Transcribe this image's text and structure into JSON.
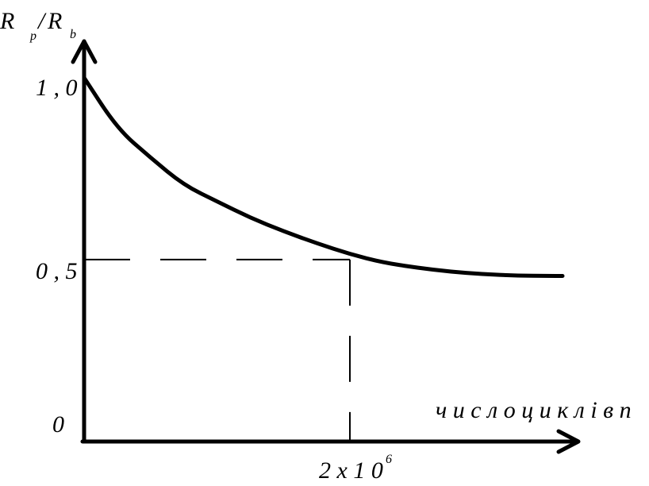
{
  "chart_data": {
    "type": "line",
    "ylabel": {
      "r1": "R",
      "sub1": "p",
      "slash": "/",
      "r2": "R",
      "sub2": "b"
    },
    "xlabel": "ч и с л о   ц и к л і в   n",
    "ytick_labels": [
      "1 , 0",
      "0 , 5",
      "0"
    ],
    "x_marker": {
      "base": "2 x 1 0",
      "exponent": "6"
    },
    "series": [
      {
        "x": [
          0,
          0.25,
          0.5,
          0.75,
          1,
          1.25,
          1.5,
          1.75,
          2,
          2.25,
          2.5,
          2.75,
          3,
          3.25,
          3.5,
          3.6
        ],
        "values": [
          1.0,
          0.86,
          0.78,
          0.705,
          0.66,
          0.615,
          0.578,
          0.545,
          0.515,
          0.492,
          0.478,
          0.467,
          0.46,
          0.456,
          0.455,
          0.455
        ]
      }
    ],
    "reference": {
      "x": 2,
      "y": 0.5
    },
    "xlim": [
      0,
      4
    ],
    "ylim": [
      0,
      1.1
    ],
    "grid": false,
    "colors": {
      "line": "#000000",
      "axis": "#000000",
      "background": "#ffffff"
    }
  }
}
